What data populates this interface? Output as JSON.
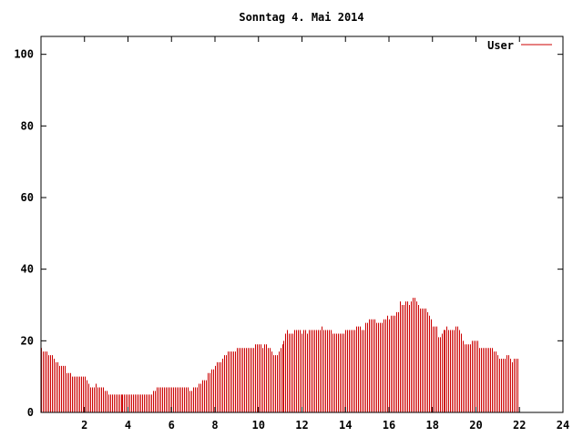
{
  "chart_data": {
    "type": "bar",
    "title": "Sonntag 4. Mai 2014",
    "xlabel": "",
    "ylabel": "",
    "xlim": [
      0,
      24
    ],
    "ylim": [
      0,
      105
    ],
    "x_ticks": [
      2,
      4,
      6,
      8,
      10,
      12,
      14,
      16,
      18,
      20,
      22,
      24
    ],
    "y_ticks": [
      0,
      20,
      40,
      60,
      80,
      100
    ],
    "x_tick_labels": [
      "2",
      "4",
      "6",
      "8",
      "10",
      "12",
      "14",
      "16",
      "18",
      "20",
      "22",
      "24"
    ],
    "y_tick_labels": [
      "0",
      "20",
      "40",
      "60",
      "80",
      "100"
    ],
    "grid": false,
    "legend": {
      "position": "top-right"
    },
    "series": [
      {
        "name": "User",
        "color": "#cc0000",
        "x_start": 0,
        "x_step": 0.0833,
        "values": [
          18,
          17,
          17,
          17,
          16,
          16,
          16,
          15,
          14,
          14,
          13,
          13,
          13,
          13,
          11,
          11,
          11,
          10,
          10,
          10,
          10,
          10,
          10,
          10,
          10,
          9,
          8,
          7,
          7,
          7,
          8,
          7,
          7,
          7,
          7,
          6,
          6,
          5,
          5,
          5,
          5,
          5,
          5,
          5,
          5,
          5,
          5,
          5,
          5,
          5,
          5,
          5,
          5,
          5,
          5,
          5,
          5,
          5,
          5,
          5,
          5,
          5,
          6,
          6,
          7,
          7,
          7,
          7,
          7,
          7,
          7,
          7,
          7,
          7,
          7,
          7,
          7,
          7,
          7,
          7,
          7,
          7,
          6,
          6,
          7,
          7,
          7,
          8,
          8,
          9,
          9,
          9,
          11,
          11,
          12,
          12,
          13,
          14,
          14,
          14,
          15,
          16,
          16,
          17,
          17,
          17,
          17,
          17,
          18,
          18,
          18,
          18,
          18,
          18,
          18,
          18,
          18,
          18,
          19,
          19,
          19,
          19,
          18,
          19,
          19,
          18,
          18,
          17,
          16,
          16,
          16,
          17,
          18,
          19,
          20,
          22,
          23,
          22,
          22,
          22,
          23,
          23,
          23,
          23,
          22,
          23,
          23,
          22,
          23,
          23,
          23,
          23,
          23,
          23,
          23,
          24,
          23,
          23,
          23,
          23,
          23,
          22,
          22,
          22,
          22,
          22,
          22,
          22,
          23,
          23,
          23,
          23,
          23,
          23,
          24,
          24,
          24,
          23,
          23,
          25,
          25,
          26,
          26,
          26,
          26,
          25,
          25,
          25,
          25,
          26,
          26,
          27,
          26,
          27,
          27,
          27,
          28,
          28,
          31,
          30,
          30,
          31,
          31,
          30,
          31,
          32,
          32,
          31,
          30,
          29,
          29,
          29,
          29,
          28,
          27,
          26,
          24,
          24,
          24,
          21,
          21,
          22,
          23,
          23,
          24,
          23,
          23,
          23,
          23,
          24,
          24,
          23,
          22,
          20,
          19,
          19,
          19,
          19,
          20,
          20,
          20,
          20,
          18,
          18,
          18,
          18,
          18,
          18,
          18,
          18,
          17,
          17,
          16,
          15,
          15,
          15,
          15,
          16,
          16,
          15,
          14,
          15,
          15,
          15
        ]
      }
    ]
  }
}
